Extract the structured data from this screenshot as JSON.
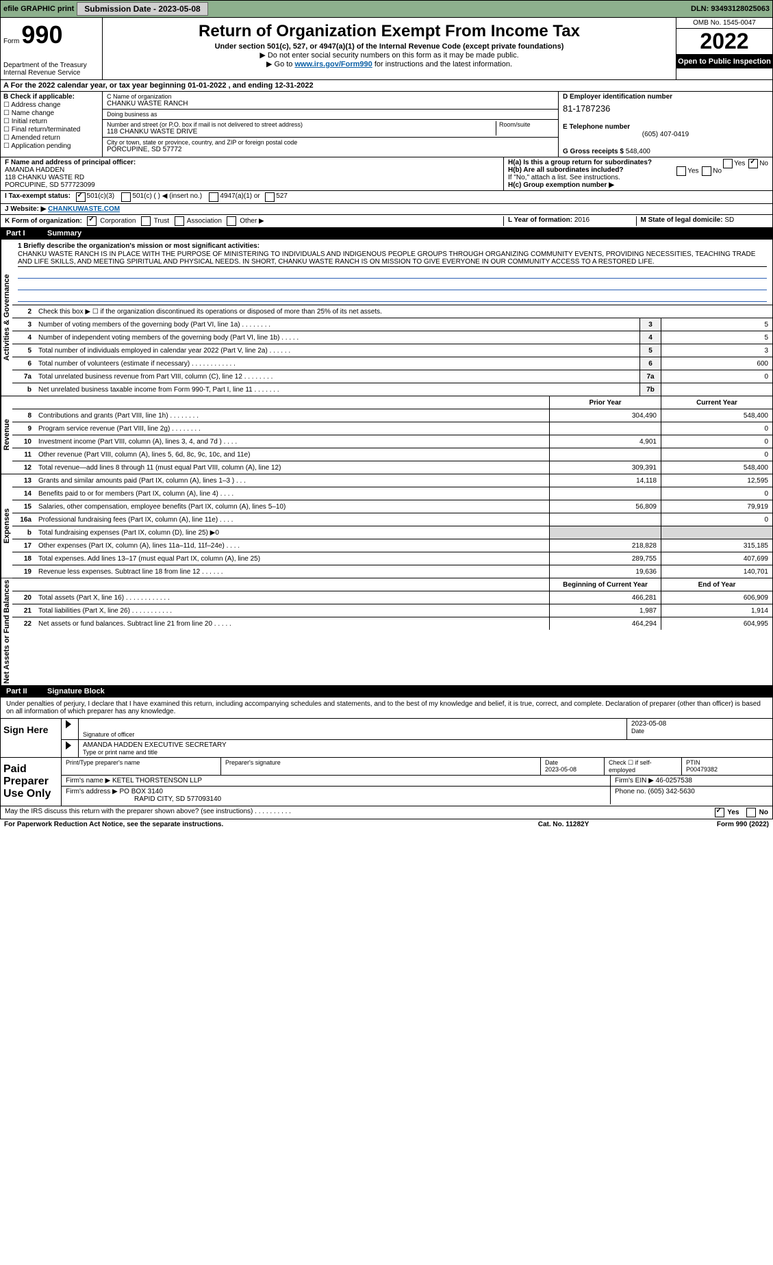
{
  "topbar": {
    "efile_label": "efile GRAPHIC print",
    "submission_label": "Submission Date - 2023-05-08",
    "dln_label": "DLN: 93493128025063"
  },
  "header": {
    "form_prefix": "Form",
    "form_number": "990",
    "dept": "Department of the Treasury Internal Revenue Service",
    "title": "Return of Organization Exempt From Income Tax",
    "subtitle": "Under section 501(c), 527, or 4947(a)(1) of the Internal Revenue Code (except private foundations)",
    "note1": "▶ Do not enter social security numbers on this form as it may be made public.",
    "note2_pre": "▶ Go to ",
    "note2_link": "www.irs.gov/Form990",
    "note2_post": " for instructions and the latest information.",
    "omb": "OMB No. 1545-0047",
    "year": "2022",
    "open_public": "Open to Public Inspection"
  },
  "rowA": "A For the 2022 calendar year, or tax year beginning 01-01-2022    , and ending 12-31-2022",
  "sectionB": {
    "label": "B Check if applicable:",
    "items": [
      "Address change",
      "Name change",
      "Initial return",
      "Final return/terminated",
      "Amended return",
      "Application pending"
    ]
  },
  "sectionC": {
    "name_label": "C Name of organization",
    "name": "CHANKU WASTE RANCH",
    "dba_label": "Doing business as",
    "dba": "",
    "street_label": "Number and street (or P.O. box if mail is not delivered to street address)",
    "room_label": "Room/suite",
    "street": "118 CHANKU WASTE DRIVE",
    "city_label": "City or town, state or province, country, and ZIP or foreign postal code",
    "city": "PORCUPINE, SD  57772"
  },
  "sectionD": {
    "ein_label": "D Employer identification number",
    "ein": "81-1787236",
    "phone_label": "E Telephone number",
    "phone": "(605) 407-0419",
    "gross_label": "G Gross receipts $",
    "gross": "548,400"
  },
  "sectionF": {
    "label": "F  Name and address of principal officer:",
    "name": "AMANDA HADDEN",
    "street": "118 CHANKU WASTE RD",
    "city": "PORCUPINE, SD  577723099"
  },
  "sectionH": {
    "ha": "H(a)  Is this a group return for subordinates?",
    "hb": "H(b)  Are all subordinates included?",
    "hb_note": "If \"No,\" attach a list. See instructions.",
    "hc": "H(c)  Group exemption number ▶",
    "yes": "Yes",
    "no": "No"
  },
  "rowI": {
    "label": "I   Tax-exempt status:",
    "opt1": "501(c)(3)",
    "opt2": "501(c) (   ) ◀ (insert no.)",
    "opt3": "4947(a)(1) or",
    "opt4": "527"
  },
  "rowJ": {
    "label": "J   Website: ▶",
    "value": "CHANKUWASTE.COM"
  },
  "rowK": {
    "label": "K Form of organization:",
    "corp": "Corporation",
    "trust": "Trust",
    "assoc": "Association",
    "other": "Other ▶",
    "l_label": "L Year of formation: ",
    "l_val": "2016",
    "m_label": "M State of legal domicile: ",
    "m_val": "SD"
  },
  "part1": {
    "num": "Part I",
    "title": "Summary"
  },
  "mission": {
    "line1_label": "1  Briefly describe the organization's mission or most significant activities:",
    "text": "CHANKU WASTE RANCH IS IN PLACE WITH THE PURPOSE OF MINISTERING TO INDIVIDUALS AND INDIGENOUS PEOPLE GROUPS THROUGH ORGANIZING COMMUNITY EVENTS, PROVIDING NECESSITIES, TEACHING TRADE AND LIFE SKILLS, AND MEETING SPIRITUAL AND PHYSICAL NEEDS. IN SHORT, CHANKU WASTE RANCH IS ON MISSION TO GIVE EVERYONE IN OUR COMMUNITY ACCESS TO A RESTORED LIFE."
  },
  "governance": [
    {
      "n": "2",
      "d": "Check this box ▶ ☐  if the organization discontinued its operations or disposed of more than 25% of its net assets.",
      "b": "",
      "v": ""
    },
    {
      "n": "3",
      "d": "Number of voting members of the governing body (Part VI, line 1a)   .    .    .    .    .    .    .    .",
      "b": "3",
      "v": "5"
    },
    {
      "n": "4",
      "d": "Number of independent voting members of the governing body (Part VI, line 1b)   .    .    .    .    .",
      "b": "4",
      "v": "5"
    },
    {
      "n": "5",
      "d": "Total number of individuals employed in calendar year 2022 (Part V, line 2a)   .    .    .    .    .    .",
      "b": "5",
      "v": "3"
    },
    {
      "n": "6",
      "d": "Total number of volunteers (estimate if necessary)    .    .    .    .    .    .    .    .    .    .    .    .",
      "b": "6",
      "v": "600"
    },
    {
      "n": "7a",
      "d": "Total unrelated business revenue from Part VIII, column (C), line 12   .    .    .    .    .    .    .    .",
      "b": "7a",
      "v": "0"
    },
    {
      "n": "b",
      "d": "Net unrelated business taxable income from Form 990-T, Part I, line 11   .    .    .    .    .    .    .",
      "b": "7b",
      "v": ""
    }
  ],
  "two_col_header": {
    "prior": "Prior Year",
    "current": "Current Year"
  },
  "revenue": [
    {
      "n": "8",
      "d": "Contributions and grants (Part VIII, line 1h)   .    .    .    .    .    .    .    .",
      "p": "304,490",
      "c": "548,400"
    },
    {
      "n": "9",
      "d": "Program service revenue (Part VIII, line 2g)   .    .    .    .    .    .    .    .",
      "p": "",
      "c": "0"
    },
    {
      "n": "10",
      "d": "Investment income (Part VIII, column (A), lines 3, 4, and 7d )   .    .    .    .",
      "p": "4,901",
      "c": "0"
    },
    {
      "n": "11",
      "d": "Other revenue (Part VIII, column (A), lines 5, 6d, 8c, 9c, 10c, and 11e)",
      "p": "",
      "c": "0"
    },
    {
      "n": "12",
      "d": "Total revenue—add lines 8 through 11 (must equal Part VIII, column (A), line 12)",
      "p": "309,391",
      "c": "548,400"
    }
  ],
  "expenses": [
    {
      "n": "13",
      "d": "Grants and similar amounts paid (Part IX, column (A), lines 1–3 )   .    .    .",
      "p": "14,118",
      "c": "12,595"
    },
    {
      "n": "14",
      "d": "Benefits paid to or for members (Part IX, column (A), line 4)   .    .    .    .",
      "p": "",
      "c": "0"
    },
    {
      "n": "15",
      "d": "Salaries, other compensation, employee benefits (Part IX, column (A), lines 5–10)",
      "p": "56,809",
      "c": "79,919"
    },
    {
      "n": "16a",
      "d": "Professional fundraising fees (Part IX, column (A), line 11e)   .    .    .    .",
      "p": "",
      "c": "0"
    },
    {
      "n": "b",
      "d": "Total fundraising expenses (Part IX, column (D), line 25) ▶0",
      "p": "shade",
      "c": "shade"
    },
    {
      "n": "17",
      "d": "Other expenses (Part IX, column (A), lines 11a–11d, 11f–24e)   .    .    .    .",
      "p": "218,828",
      "c": "315,185"
    },
    {
      "n": "18",
      "d": "Total expenses. Add lines 13–17 (must equal Part IX, column (A), line 25)",
      "p": "289,755",
      "c": "407,699"
    },
    {
      "n": "19",
      "d": "Revenue less expenses. Subtract line 18 from line 12   .    .    .    .    .    .",
      "p": "19,636",
      "c": "140,701"
    }
  ],
  "net_header": {
    "begin": "Beginning of Current Year",
    "end": "End of Year"
  },
  "net": [
    {
      "n": "20",
      "d": "Total assets (Part X, line 16)   .    .    .    .    .    .    .    .    .    .    .    .",
      "p": "466,281",
      "c": "606,909"
    },
    {
      "n": "21",
      "d": "Total liabilities (Part X, line 26)   .    .    .    .    .    .    .    .    .    .    .",
      "p": "1,987",
      "c": "1,914"
    },
    {
      "n": "22",
      "d": "Net assets or fund balances. Subtract line 21 from line 20   .    .    .    .    .",
      "p": "464,294",
      "c": "604,995"
    }
  ],
  "part2": {
    "num": "Part II",
    "title": "Signature Block"
  },
  "penalties": "Under penalties of perjury, I declare that I have examined this return, including accompanying schedules and statements, and to the best of my knowledge and belief, it is true, correct, and complete. Declaration of preparer (other than officer) is based on all information of which preparer has any knowledge.",
  "sign": {
    "label": "Sign Here",
    "sig_label": "Signature of officer",
    "date": "2023-05-08",
    "date_label": "Date",
    "name": "AMANDA HADDEN  EXECUTIVE SECRETARY",
    "name_label": "Type or print name and title"
  },
  "preparer": {
    "label": "Paid Preparer Use Only",
    "h_name": "Print/Type preparer's name",
    "h_sig": "Preparer's signature",
    "h_date": "Date",
    "date": "2023-05-08",
    "h_self": "Check ☐ if self-employed",
    "h_ptin": "PTIN",
    "ptin": "P00479382",
    "firm_label": "Firm's name    ▶",
    "firm": "KETEL THORSTENSON LLP",
    "ein_label": "Firm's EIN ▶",
    "ein": "46-0257538",
    "addr_label": "Firm's address ▶",
    "addr1": "PO BOX 3140",
    "addr2": "RAPID CITY, SD  577093140",
    "phone_label": "Phone no.",
    "phone": "(605) 342-5630"
  },
  "may_irs": "May the IRS discuss this return with the preparer shown above? (see instructions)   .    .    .    .    .    .    .    .    .    .",
  "footer": {
    "left": "For Paperwork Reduction Act Notice, see the separate instructions.",
    "mid": "Cat. No. 11282Y",
    "right": "Form 990 (2022)"
  },
  "labels": {
    "activities_governance": "Activities & Governance",
    "revenue": "Revenue",
    "expenses": "Expenses",
    "net_assets": "Net Assets or Fund Balances"
  }
}
